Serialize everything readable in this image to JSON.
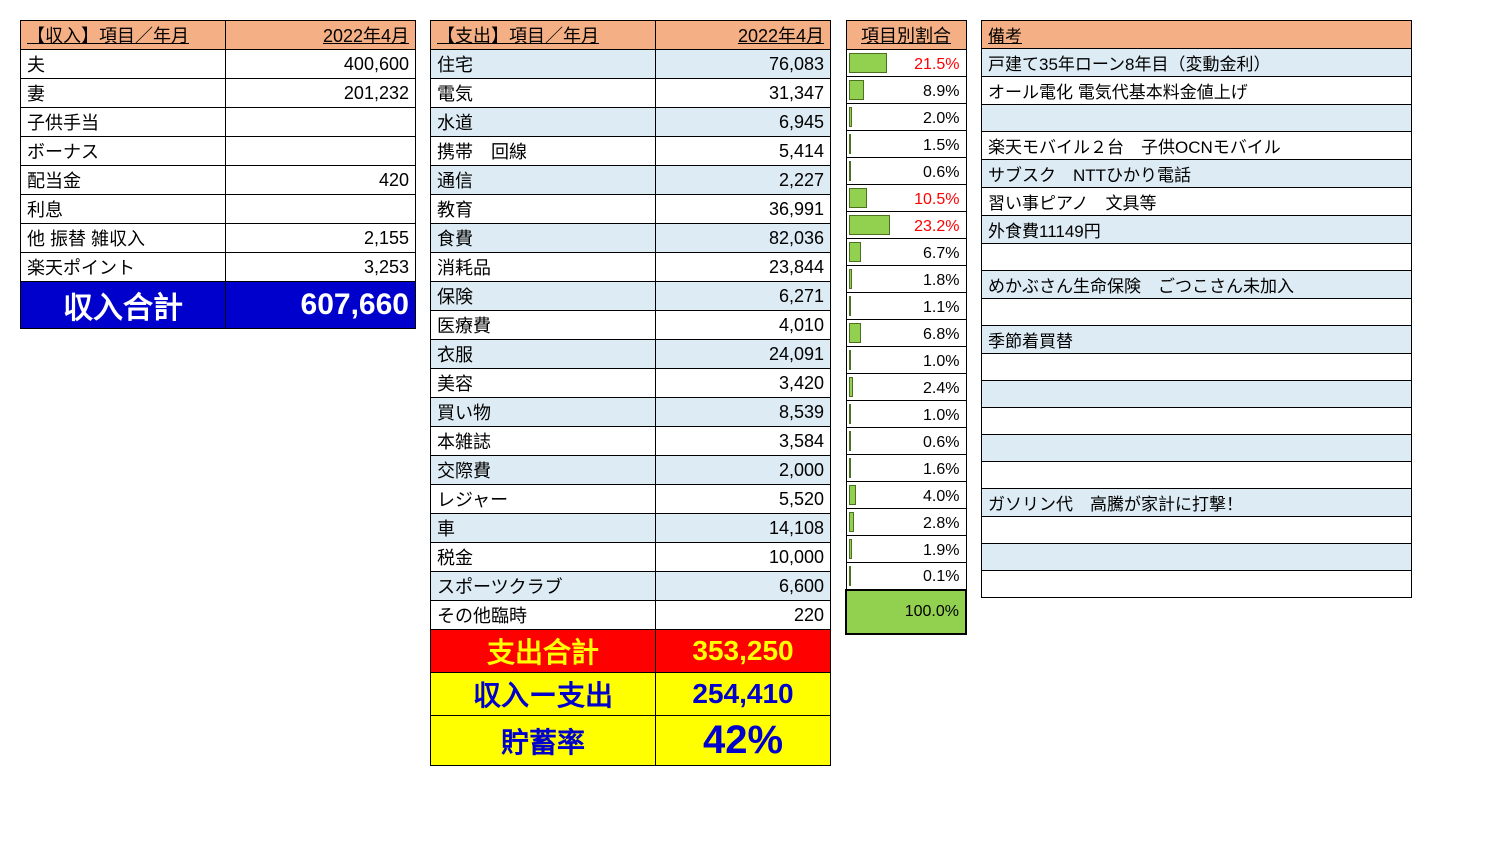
{
  "period": "2022年4月",
  "income": {
    "header_label": "【収入】項目／年月",
    "rows": [
      {
        "label": "夫",
        "value": "400,600"
      },
      {
        "label": "妻",
        "value": "201,232"
      },
      {
        "label": "子供手当",
        "value": ""
      },
      {
        "label": "ボーナス",
        "value": ""
      },
      {
        "label": "配当金",
        "value": "420"
      },
      {
        "label": "利息",
        "value": ""
      },
      {
        "label": "他 振替 雑収入",
        "value": "2,155"
      },
      {
        "label": "楽天ポイント",
        "value": "3,253"
      }
    ],
    "total_label": "収入合計",
    "total_value": "607,660"
  },
  "expense": {
    "header_label": "【支出】項目／年月",
    "pct_header": "項目別割合",
    "note_header": "備考",
    "pct_red_threshold": 10.0,
    "rows": [
      {
        "label": "住宅",
        "value": "76,083",
        "pct": 21.5,
        "note": "戸建て35年ローン8年目（変動金利）",
        "alt": true
      },
      {
        "label": "電気",
        "value": "31,347",
        "pct": 8.9,
        "note": "オール電化 電気代基本料金値上げ",
        "alt": false
      },
      {
        "label": "水道",
        "value": "6,945",
        "pct": 2.0,
        "note": "",
        "alt": true
      },
      {
        "label": "携帯　回線",
        "value": "5,414",
        "pct": 1.5,
        "note": "楽天モバイル２台　子供OCNモバイル",
        "alt": false
      },
      {
        "label": "通信",
        "value": "2,227",
        "pct": 0.6,
        "note": "サブスク　NTTひかり電話",
        "alt": true
      },
      {
        "label": "教育",
        "value": "36,991",
        "pct": 10.5,
        "note": "習い事ピアノ　文具等",
        "alt": false
      },
      {
        "label": "食費",
        "value": "82,036",
        "pct": 23.2,
        "note": "外食費11149円",
        "alt": true
      },
      {
        "label": "消耗品",
        "value": "23,844",
        "pct": 6.7,
        "note": "",
        "alt": false
      },
      {
        "label": "保険",
        "value": "6,271",
        "pct": 1.8,
        "note": "めかぶさん生命保険　ごつこさん未加入",
        "alt": true
      },
      {
        "label": "医療費",
        "value": "4,010",
        "pct": 1.1,
        "note": "",
        "alt": false
      },
      {
        "label": "衣服",
        "value": "24,091",
        "pct": 6.8,
        "note": "季節着買替",
        "alt": true
      },
      {
        "label": "美容",
        "value": "3,420",
        "pct": 1.0,
        "note": "",
        "alt": false
      },
      {
        "label": "買い物",
        "value": "8,539",
        "pct": 2.4,
        "note": "",
        "alt": true
      },
      {
        "label": "本雑誌",
        "value": "3,584",
        "pct": 1.0,
        "note": "",
        "alt": false
      },
      {
        "label": "交際費",
        "value": "2,000",
        "pct": 0.6,
        "note": "",
        "alt": true
      },
      {
        "label": "レジャー",
        "value": "5,520",
        "pct": 1.6,
        "note": "",
        "alt": false
      },
      {
        "label": "車",
        "value": "14,108",
        "pct": 4.0,
        "note": "ガソリン代　高騰が家計に打撃！",
        "alt": true
      },
      {
        "label": "税金",
        "value": "10,000",
        "pct": 2.8,
        "note": "",
        "alt": false
      },
      {
        "label": "スポーツクラブ",
        "value": "6,600",
        "pct": 1.9,
        "note": "",
        "alt": true
      },
      {
        "label": "その他臨時",
        "value": "220",
        "pct": 0.1,
        "note": "",
        "alt": false
      }
    ],
    "total_label": "支出合計",
    "total_value": "353,250",
    "total_pct": "100.0%",
    "diff_label": "収入ー支出",
    "diff_value": "254,410",
    "rate_label": "貯蓄率",
    "rate_value": "42%"
  },
  "colors": {
    "header_bg": "#f4b084",
    "alt_bg": "#ddebf4",
    "income_total_bg": "#0000cc",
    "income_total_fg": "#ffffff",
    "expense_total_bg": "#ff0000",
    "expense_total_fg": "#ffff00",
    "diff_bg": "#ffff00",
    "diff_fg": "#0000cc",
    "bar_fill": "#92d050",
    "pct_highlight_fg": "#ff0000"
  }
}
